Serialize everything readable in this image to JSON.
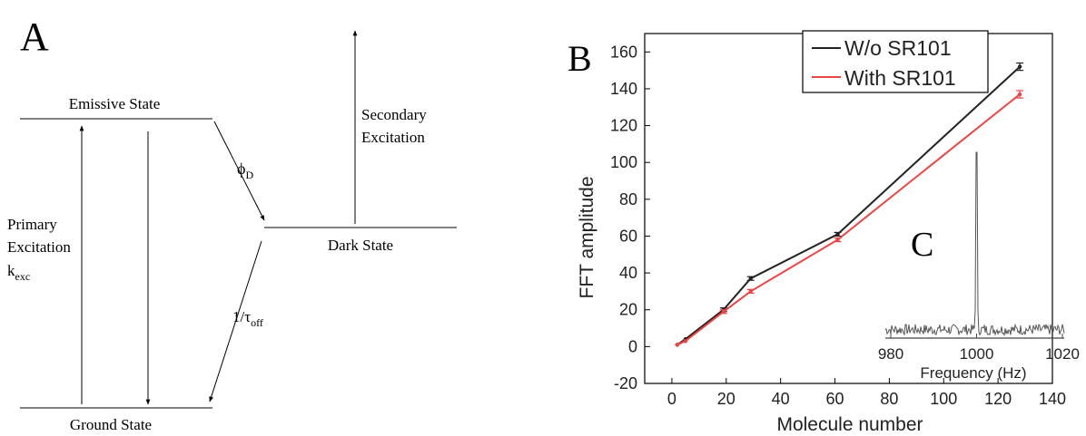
{
  "panel_a": {
    "label": "A",
    "emissive_state": "Emissive State",
    "ground_state": "Ground State",
    "dark_state": "Dark State",
    "primary_excitation": [
      "Primary",
      "Excitation",
      "k"
    ],
    "primary_excitation_sub": "exc",
    "secondary_excitation": [
      "Secondary",
      "Excitation"
    ],
    "phi": "ϕ",
    "phi_sub": "D",
    "tau": "1/τ",
    "tau_sub": "off"
  },
  "panel_b": {
    "label": "B",
    "inset_label": "C"
  },
  "chart_data": [
    {
      "type": "line",
      "panel": "B",
      "xlabel": "Molecule number",
      "ylabel": "FFT amplitude",
      "xlim": [
        -10,
        140
      ],
      "ylim": [
        -20,
        170
      ],
      "xticks": [
        0,
        20,
        40,
        60,
        80,
        100,
        120,
        140
      ],
      "yticks": [
        -20,
        0,
        20,
        40,
        60,
        80,
        100,
        120,
        140,
        160
      ],
      "legend_position": "top-right",
      "series": [
        {
          "name": "W/o SR101",
          "color": "#222222",
          "x": [
            2,
            5,
            19,
            29,
            61,
            128
          ],
          "y": [
            1,
            4,
            20,
            37,
            61,
            152
          ],
          "err": [
            0,
            0,
            1,
            1,
            1,
            2
          ]
        },
        {
          "name": "With SR101",
          "color": "#ee4444",
          "x": [
            2,
            5,
            19,
            29,
            61,
            128
          ],
          "y": [
            1,
            3,
            19,
            30,
            58,
            137
          ],
          "err": [
            0,
            0,
            1,
            1,
            1,
            2
          ]
        }
      ]
    },
    {
      "type": "line",
      "panel": "C",
      "xlabel": "Frequency (Hz)",
      "xlim": [
        980,
        1020
      ],
      "xticks": [
        980,
        1000,
        1020
      ],
      "series": [
        {
          "color": "#555555",
          "noise_level": 0.06,
          "peak_x": 1000,
          "peak_height": 1.0
        }
      ]
    }
  ]
}
